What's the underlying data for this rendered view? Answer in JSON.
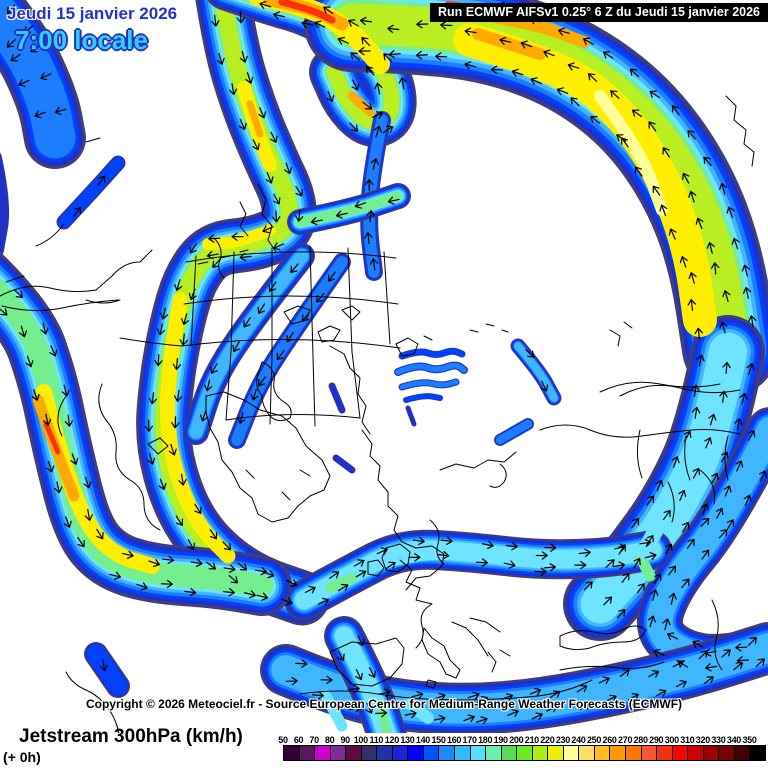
{
  "header": {
    "date": "Jeudi 15 janvier 2026",
    "time": "7:00 locale",
    "run": "Run ECMWF AIFSv1 0.25° 6 Z du Jeudi 15 janvier 2026"
  },
  "footer": {
    "copyright": "Copyright © 2026 Meteociel.fr - Source European Centre for Medium-Range Weather Forecasts (ECMWF)",
    "title": "Jetstream 300hPa (km/h)",
    "step": "(+ 0h)"
  },
  "legend": {
    "unit": "km/h",
    "values": [
      "50",
      "60",
      "70",
      "80",
      "90",
      "100",
      "110",
      "120",
      "130",
      "140",
      "150",
      "160",
      "170",
      "180",
      "190",
      "200",
      "210",
      "220",
      "230",
      "240",
      "250",
      "260",
      "270",
      "280",
      "290",
      "300",
      "310",
      "320",
      "330",
      "340",
      "350"
    ],
    "colors": [
      "#330033",
      "#5c155c",
      "#cc00cc",
      "#7d2e96",
      "#600b40",
      "#32326a",
      "#2233aa",
      "#2222dd",
      "#0000ff",
      "#0055ff",
      "#2288ff",
      "#33bbff",
      "#55e0ff",
      "#66f2aa",
      "#55dd55",
      "#66ee22",
      "#aaee11",
      "#eeee00",
      "#ffff99",
      "#ffdd66",
      "#ffbb22",
      "#ff9900",
      "#ff7700",
      "#ff5533",
      "#ee3311",
      "#ff0000",
      "#cc0000",
      "#990000",
      "#770000",
      "#420000",
      "#000000"
    ]
  },
  "colors": {
    "date_text": "#2233cc",
    "time_text": "#33ccff",
    "time_outline": "#2233bb",
    "banner_bg": "#000000",
    "banner_text": "#ffffff",
    "land": "#ffffff",
    "coastline": "#000000",
    "jet_edge": "#3e3e7c"
  }
}
